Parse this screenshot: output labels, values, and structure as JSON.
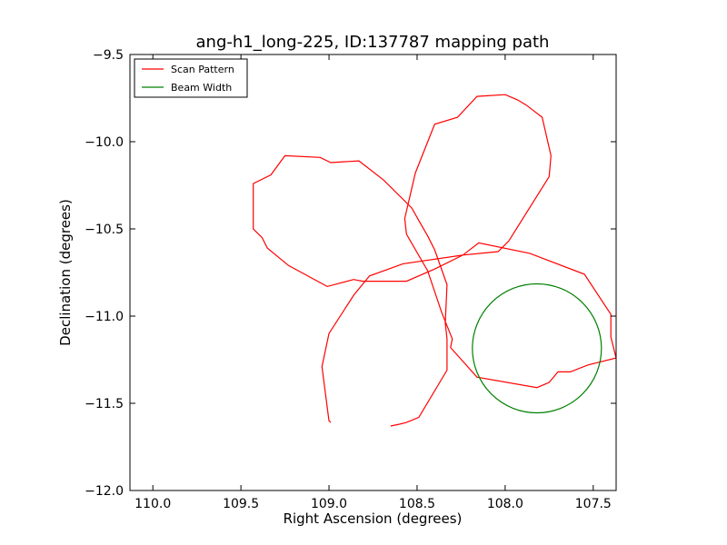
{
  "chart_data": {
    "type": "line",
    "title": "ang-h1_long-225, ID:137787 mapping path",
    "xlabel": "Right Ascension (degrees)",
    "ylabel": "Declination (degrees)",
    "xlim": [
      110.13,
      107.37
    ],
    "ylim": [
      -12.0,
      -9.5
    ],
    "x_reversed": true,
    "xticks": [
      "110.0",
      "109.5",
      "109.0",
      "108.5",
      "108.0",
      "107.5"
    ],
    "xtick_values": [
      110.0,
      109.5,
      109.0,
      108.5,
      108.0,
      107.5
    ],
    "yticks": [
      "−9.5",
      "−10.0",
      "−10.5",
      "−11.0",
      "−11.5",
      "−12.0"
    ],
    "ytick_values": [
      -9.5,
      -10.0,
      -10.5,
      -11.0,
      -11.5,
      -12.0
    ],
    "grid": false,
    "legend_position": "top-left",
    "series": [
      {
        "name": "Scan Pattern",
        "color": "#ff0000",
        "kind": "line",
        "x": [
          108.99,
          109.0,
          109.04,
          109.0,
          108.86,
          108.77,
          108.58,
          108.24,
          108.04,
          107.98,
          107.75,
          107.74,
          107.79,
          107.88,
          107.93,
          108.0,
          108.16,
          108.27,
          108.4,
          108.51,
          108.57,
          108.56,
          108.44,
          108.36,
          108.3,
          108.27,
          108.31,
          108.37,
          108.49,
          108.56,
          108.66,
          108.83,
          109.01,
          109.23,
          109.35,
          109.38,
          109.42,
          109.43,
          109.33,
          109.25,
          109.05,
          108.99,
          108.83,
          108.69,
          108.53,
          108.48,
          108.4,
          108.33,
          108.24,
          108.14,
          108.0,
          107.86,
          107.78,
          107.7,
          107.63,
          107.53,
          107.37,
          107.4,
          107.4,
          107.6
        ],
        "y": [
          -11.61,
          -11.6,
          -11.29,
          -11.1,
          -10.88,
          -10.77,
          -10.7,
          -10.65,
          -10.63,
          -10.57,
          -10.2,
          -10.08,
          -9.86,
          -9.79,
          -9.76,
          -9.73,
          -9.74,
          -9.86,
          -9.9,
          -10.18,
          -10.34,
          -10.52,
          -10.61,
          -10.74,
          -10.98,
          -11.13,
          -11.18,
          -11.25,
          -11.37,
          -11.42,
          -11.46,
          -11.52,
          -11.56,
          -11.58,
          -11.6,
          -11.59,
          -11.57,
          -11.44,
          -11.2,
          -11.04,
          -11.04,
          -11.0,
          -11.04,
          -11.09,
          -11.09,
          -10.94,
          -10.79,
          -10.75,
          -10.72,
          -10.58,
          -10.5,
          -10.55,
          -10.57,
          -10.6,
          -10.65,
          -10.76,
          -10.99,
          -11.12,
          -11.3,
          -11.33
        ],
        "segments": [
          [
            [
              108.99,
              -11.61
            ],
            [
              109.0,
              -11.6
            ],
            [
              109.04,
              -11.29
            ],
            [
              109.0,
              -11.1
            ],
            [
              108.86,
              -10.88
            ],
            [
              108.77,
              -10.77
            ],
            [
              108.58,
              -10.7
            ],
            [
              108.24,
              -10.65
            ],
            [
              108.04,
              -10.63
            ],
            [
              107.98,
              -10.57
            ],
            [
              107.75,
              -10.2
            ],
            [
              107.74,
              -10.08
            ],
            [
              107.79,
              -9.86
            ],
            [
              107.88,
              -9.79
            ],
            [
              107.93,
              -9.76
            ],
            [
              108.0,
              -9.73
            ],
            [
              108.16,
              -9.74
            ],
            [
              108.27,
              -9.86
            ],
            [
              108.4,
              -9.9
            ],
            [
              108.51,
              -10.18
            ],
            [
              108.57,
              -10.44
            ],
            [
              108.56,
              -10.53
            ],
            [
              108.44,
              -10.74
            ],
            [
              108.36,
              -10.98
            ],
            [
              108.3,
              -11.13
            ],
            [
              108.31,
              -11.18
            ],
            [
              108.16,
              -11.35
            ],
            [
              107.82,
              -11.41
            ],
            [
              107.75,
              -11.38
            ],
            [
              107.7,
              -11.32
            ],
            [
              107.63,
              -11.32
            ],
            [
              107.53,
              -11.28
            ],
            [
              107.37,
              -11.24
            ],
            [
              107.4,
              -11.12
            ],
            [
              107.4,
              -10.99
            ],
            [
              107.55,
              -10.76
            ],
            [
              107.86,
              -10.64
            ],
            [
              108.15,
              -10.58
            ],
            [
              108.24,
              -10.65
            ],
            [
              108.4,
              -10.73
            ],
            [
              108.56,
              -10.8
            ],
            [
              108.6,
              -10.8
            ],
            [
              108.81,
              -10.8
            ],
            [
              108.86,
              -10.79
            ],
            [
              109.01,
              -10.83
            ],
            [
              109.23,
              -10.71
            ],
            [
              109.35,
              -10.61
            ],
            [
              109.38,
              -10.55
            ],
            [
              109.43,
              -10.5
            ],
            [
              109.43,
              -10.24
            ],
            [
              109.33,
              -10.19
            ],
            [
              109.25,
              -10.08
            ],
            [
              109.05,
              -10.09
            ],
            [
              108.99,
              -10.12
            ],
            [
              108.83,
              -10.11
            ],
            [
              108.69,
              -10.22
            ],
            [
              108.53,
              -10.38
            ],
            [
              108.48,
              -10.47
            ],
            [
              108.44,
              -10.54
            ],
            [
              108.4,
              -10.62
            ],
            [
              108.33,
              -10.82
            ],
            [
              108.34,
              -11.04
            ],
            [
              108.33,
              -11.13
            ],
            [
              108.33,
              -11.31
            ],
            [
              108.49,
              -11.58
            ],
            [
              108.56,
              -11.61
            ],
            [
              108.6,
              -11.62
            ],
            [
              108.65,
              -11.63
            ]
          ]
        ]
      },
      {
        "name": "Beam Width",
        "color": "#008000",
        "kind": "circle",
        "center": [
          107.82,
          -11.185
        ],
        "radius_dec": 0.37
      }
    ]
  }
}
